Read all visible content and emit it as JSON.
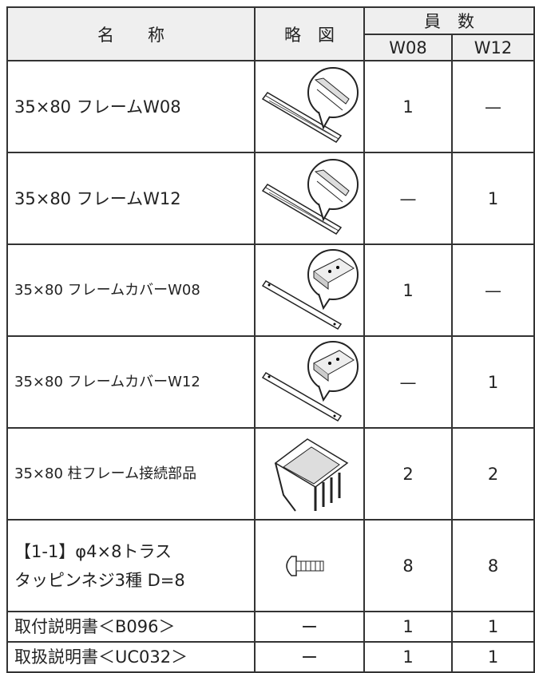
{
  "header": {
    "name": "名　　称",
    "diagram": "略　図",
    "count": "員　数",
    "variants": [
      "W08",
      "W12"
    ]
  },
  "rows": [
    {
      "name": [
        "35×80 フレームW08"
      ],
      "counts": [
        1,
        "—"
      ]
    },
    {
      "name": [
        "35×80 フレームW12"
      ],
      "counts": [
        "—",
        1
      ]
    },
    {
      "name": [
        "35×80 フレームカバーW08"
      ],
      "counts": [
        1,
        "—"
      ]
    },
    {
      "name": [
        "35×80 フレームカバーW12"
      ],
      "counts": [
        "—",
        1
      ]
    },
    {
      "name": [
        "35×80 柱フレーム接続部品"
      ],
      "counts": [
        2,
        2
      ]
    },
    {
      "name": [
        "【1-1】φ4×8トラス",
        "タッピンネジ3種 D=8"
      ],
      "counts": [
        8,
        8
      ]
    },
    {
      "name": [
        "取付説明書＜B096＞"
      ],
      "diagram": "ー",
      "counts": [
        1,
        1
      ]
    },
    {
      "name": [
        "取扱説明書＜UC032＞"
      ],
      "diagram": "ー",
      "counts": [
        1,
        1
      ]
    }
  ]
}
